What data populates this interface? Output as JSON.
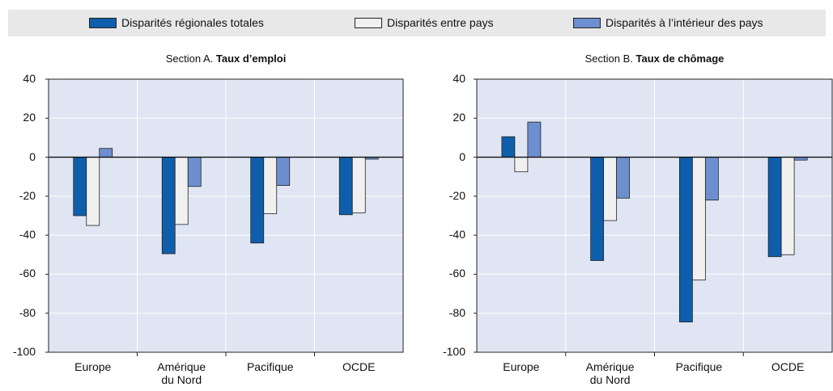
{
  "chart_data": [
    {
      "type": "bar",
      "section": "Section A.",
      "title": "Taux d’emploi",
      "categories": [
        "Europe",
        "Amérique du Nord",
        "Pacifique",
        "OCDE"
      ],
      "series": [
        {
          "name": "Disparités régionales totales",
          "color": "#0f5eab",
          "values": [
            -30,
            -49.5,
            -44,
            -29.5
          ]
        },
        {
          "name": "Disparités entre pays",
          "color": "#f0f0f0",
          "values": [
            -35,
            -34.5,
            -29,
            -28.5
          ]
        },
        {
          "name": "Disparités à l’intérieur des pays",
          "color": "#6d8fcf",
          "values": [
            4.5,
            -15,
            -14.5,
            -1
          ]
        }
      ],
      "ylim": [
        -100,
        40
      ],
      "yticks": [
        -100,
        -80,
        -60,
        -40,
        -20,
        0,
        20,
        40
      ],
      "grid": true
    },
    {
      "type": "bar",
      "section": "Section B.",
      "title": "Taux de chômage",
      "categories": [
        "Europe",
        "Amérique du Nord",
        "Pacifique",
        "OCDE"
      ],
      "series": [
        {
          "name": "Disparités régionales totales",
          "color": "#0f5eab",
          "values": [
            10.5,
            -53,
            -84.5,
            -51
          ]
        },
        {
          "name": "Disparités entre pays",
          "color": "#f0f0f0",
          "values": [
            -7.5,
            -32.5,
            -63,
            -50
          ]
        },
        {
          "name": "Disparités à l’intérieur des pays",
          "color": "#6d8fcf",
          "values": [
            18,
            -21,
            -22,
            -1.5
          ]
        }
      ],
      "ylim": [
        -100,
        40
      ],
      "yticks": [
        -100,
        -80,
        -60,
        -40,
        -20,
        0,
        20,
        40
      ],
      "grid": true
    }
  ]
}
